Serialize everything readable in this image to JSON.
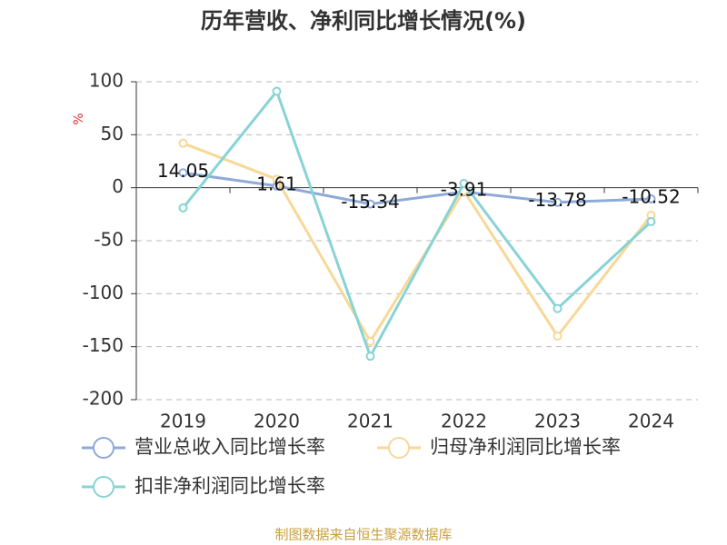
{
  "chart_data": {
    "type": "line",
    "title": "历年营收、净利同比增长情况(%)",
    "y_label": "%",
    "categories": [
      "2019",
      "2020",
      "2021",
      "2022",
      "2023",
      "2024"
    ],
    "series": [
      {
        "name": "营业总收入同比增长率",
        "color": "#8eaad8",
        "values": [
          14.05,
          1.61,
          -15.34,
          -3.91,
          -13.78,
          -10.52
        ],
        "data_labels": true
      },
      {
        "name": "归母净利润同比增长率",
        "color": "#f7d898",
        "values": [
          42,
          8,
          -145,
          -3,
          -140,
          -26
        ]
      },
      {
        "name": "扣非净利润同比增长率",
        "color": "#88d3d5",
        "values": [
          -19,
          91,
          -159,
          4,
          -114,
          -32
        ]
      }
    ],
    "ylim": [
      -200,
      100
    ],
    "yticks": [
      -200,
      -150,
      -100,
      -50,
      0,
      50,
      100
    ],
    "grid": true,
    "source": "制图数据来自恒生聚源数据库"
  }
}
